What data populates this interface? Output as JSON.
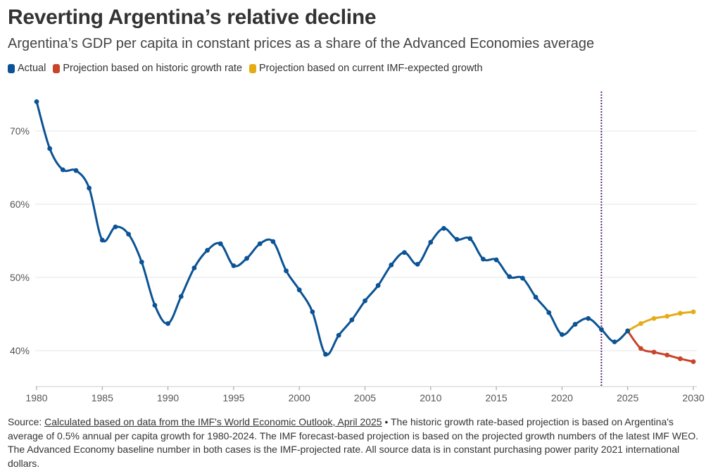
{
  "title": "Reverting Argentina’s relative decline",
  "subtitle": "Argentina’s GDP per capita in constant prices as a share of the Advanced Economies average",
  "legend": {
    "actual": "Actual",
    "historic": "Projection based on historic growth rate",
    "imf": "Projection based on current IMF-expected growth"
  },
  "colors": {
    "actual": "#0b5394",
    "historic": "#c8452a",
    "imf": "#e6ac17",
    "marker": "#5b2a6e"
  },
  "source": {
    "prefix": "Source:",
    "link": "Calculated based on data from the IMF's World Economic Outlook, April 2025",
    "text": "• The historic growth rate-based projection is based on Argentina's average of 0.5% annual per capita growth for 1980-2024. The IMF forecast-based projection is based on the projected growth numbers of the latest IMF WEO. The Advanced Economy baseline number in both cases is the IMF-projected rate. All source data is in constant purchasing power parity 2021 international dollars."
  },
  "chart_data": {
    "type": "line",
    "title": "Reverting Argentina’s relative decline",
    "xlabel": "",
    "ylabel": "",
    "xlim": [
      1980,
      2030
    ],
    "ylim": [
      35,
      75
    ],
    "x_ticks": [
      1980,
      1985,
      1990,
      1995,
      2000,
      2005,
      2010,
      2015,
      2020,
      2025,
      2030
    ],
    "x_tick_labels": [
      "1980",
      "1985",
      "1990",
      "1995",
      "2000",
      "2005",
      "2010",
      "2015",
      "2020",
      "2025",
      "2030"
    ],
    "y_ticks": [
      40,
      50,
      60,
      70
    ],
    "y_tick_labels": [
      "40%",
      "50%",
      "60%",
      "70%"
    ],
    "vertical_marker_year": 2023,
    "series": [
      {
        "name": "Actual",
        "key": "actual",
        "x": [
          1980,
          1981,
          1982,
          1983,
          1984,
          1985,
          1986,
          1987,
          1988,
          1989,
          1990,
          1991,
          1992,
          1993,
          1994,
          1995,
          1996,
          1997,
          1998,
          1999,
          2000,
          2001,
          2002,
          2003,
          2004,
          2005,
          2006,
          2007,
          2008,
          2009,
          2010,
          2011,
          2012,
          2013,
          2014,
          2015,
          2016,
          2017,
          2018,
          2019,
          2020,
          2021,
          2022,
          2023,
          2024,
          2025
        ],
        "values": [
          74.0,
          67.6,
          64.7,
          64.6,
          62.2,
          55.1,
          56.9,
          55.9,
          52.1,
          46.2,
          43.7,
          47.4,
          51.3,
          53.7,
          54.6,
          51.6,
          52.6,
          54.6,
          54.9,
          50.9,
          48.3,
          45.3,
          39.5,
          42.1,
          44.2,
          46.8,
          48.9,
          51.7,
          53.4,
          51.8,
          54.8,
          56.7,
          55.2,
          55.3,
          52.5,
          52.4,
          50.1,
          49.9,
          47.3,
          45.2,
          42.2,
          43.6,
          44.4,
          42.9,
          41.2,
          42.7
        ]
      },
      {
        "name": "Projection based on historic growth rate",
        "key": "historic",
        "x": [
          2025,
          2026,
          2027,
          2028,
          2029,
          2030
        ],
        "values": [
          42.7,
          40.3,
          39.8,
          39.4,
          38.9,
          38.5
        ]
      },
      {
        "name": "Projection based on current IMF-expected growth",
        "key": "imf",
        "x": [
          2025,
          2026,
          2027,
          2028,
          2029,
          2030
        ],
        "values": [
          42.7,
          43.7,
          44.4,
          44.7,
          45.1,
          45.3
        ]
      }
    ]
  }
}
